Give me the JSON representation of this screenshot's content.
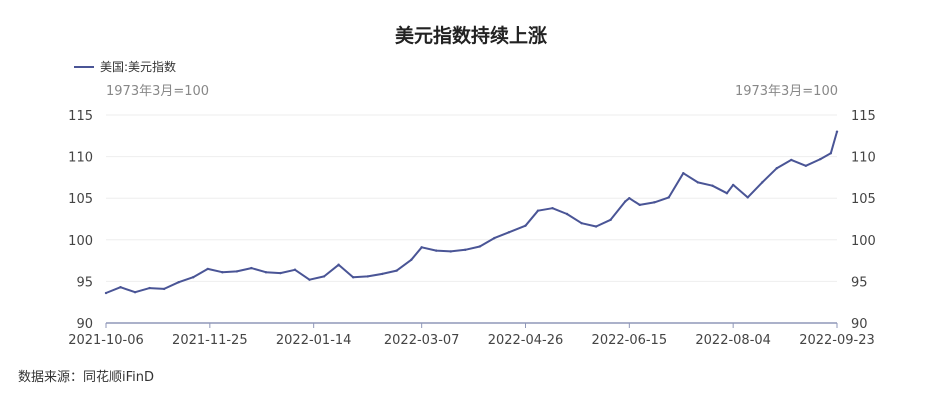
{
  "title": "美元指数持续上涨",
  "legend_label": "美国:美元指数",
  "unit_left": "1973年3月=100",
  "unit_right": "1973年3月=100",
  "source": "数据来源：同花顺iFinD",
  "colors": {
    "line": "#4a5596",
    "axis": "#8f97b8",
    "grid": "#eeeeee"
  },
  "chart_data": {
    "type": "line",
    "title": "美元指数持续上涨",
    "ylim": [
      90,
      115
    ],
    "yticks": [
      90,
      95,
      100,
      105,
      110,
      115
    ],
    "xtick_labels": [
      "2021-10-06",
      "2021-11-25",
      "2022-01-14",
      "2022-03-07",
      "2022-04-26",
      "2022-06-15",
      "2022-08-04",
      "2022-09-23"
    ],
    "grid": true,
    "dual_axis": true,
    "series": [
      {
        "name": "美国:美元指数",
        "x": [
          "2021-10-06",
          "2021-10-13",
          "2021-10-20",
          "2021-10-27",
          "2021-11-03",
          "2021-11-10",
          "2021-11-17",
          "2021-11-24",
          "2021-12-01",
          "2021-12-08",
          "2021-12-15",
          "2021-12-22",
          "2021-12-29",
          "2022-01-05",
          "2022-01-12",
          "2022-01-19",
          "2022-01-26",
          "2022-02-02",
          "2022-02-09",
          "2022-02-16",
          "2022-02-23",
          "2022-03-02",
          "2022-03-07",
          "2022-03-14",
          "2022-03-21",
          "2022-03-28",
          "2022-04-04",
          "2022-04-11",
          "2022-04-18",
          "2022-04-26",
          "2022-05-02",
          "2022-05-09",
          "2022-05-16",
          "2022-05-23",
          "2022-05-30",
          "2022-06-06",
          "2022-06-13",
          "2022-06-15",
          "2022-06-20",
          "2022-06-27",
          "2022-07-04",
          "2022-07-11",
          "2022-07-18",
          "2022-07-25",
          "2022-08-01",
          "2022-08-04",
          "2022-08-11",
          "2022-08-18",
          "2022-08-25",
          "2022-09-01",
          "2022-09-08",
          "2022-09-15",
          "2022-09-20",
          "2022-09-23"
        ],
        "values": [
          93.6,
          94.3,
          93.7,
          94.2,
          94.1,
          94.9,
          95.5,
          96.5,
          96.1,
          96.2,
          96.6,
          96.1,
          96.0,
          96.4,
          95.2,
          95.6,
          97.0,
          95.5,
          95.6,
          95.9,
          96.3,
          97.6,
          99.1,
          98.7,
          98.6,
          98.8,
          99.2,
          100.2,
          100.9,
          101.7,
          103.5,
          103.8,
          103.1,
          102.0,
          101.6,
          102.4,
          104.6,
          105.0,
          104.2,
          104.5,
          105.1,
          108.0,
          106.9,
          106.5,
          105.6,
          106.6,
          105.1,
          106.9,
          108.6,
          109.6,
          108.9,
          109.7,
          110.4,
          113.0
        ]
      }
    ]
  }
}
